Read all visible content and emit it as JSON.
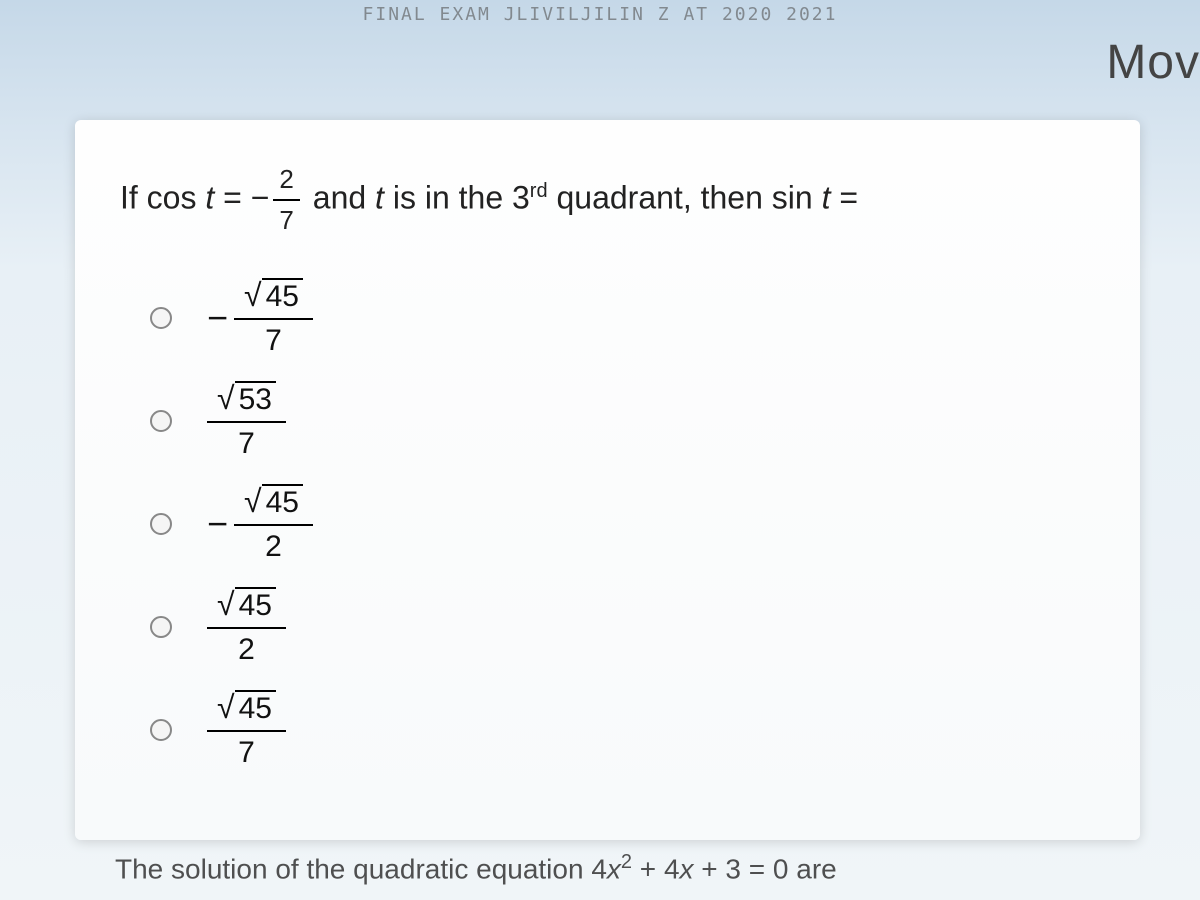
{
  "header": {
    "garble": "FINAL EXAM JLIVILJILIN Z AT 2020 2021",
    "corner": "Mov"
  },
  "question": {
    "prefix": "If cos",
    "var": "t",
    "equals": "=",
    "neg": "−",
    "frac_num": "2",
    "frac_den": "7",
    "mid": "and",
    "mid2": "is in the 3",
    "sup": "rd",
    "tail": "quadrant, then sin",
    "tail_eq": "="
  },
  "options": [
    {
      "neg": true,
      "sqrt": "45",
      "den": "7"
    },
    {
      "neg": false,
      "sqrt": "53",
      "den": "7"
    },
    {
      "neg": true,
      "sqrt": "45",
      "den": "2"
    },
    {
      "neg": false,
      "sqrt": "45",
      "den": "2"
    },
    {
      "neg": false,
      "sqrt": "45",
      "den": "7"
    }
  ],
  "next": {
    "prefix": "The solution of the quadratic equation 4",
    "var": "x",
    "sq": "2",
    "mid": " + 4",
    "var2": "x",
    "tail": " + 3 = 0 are"
  },
  "colors": {
    "card_bg": "#fefefe",
    "text": "#222222",
    "radio_border": "#888888"
  }
}
